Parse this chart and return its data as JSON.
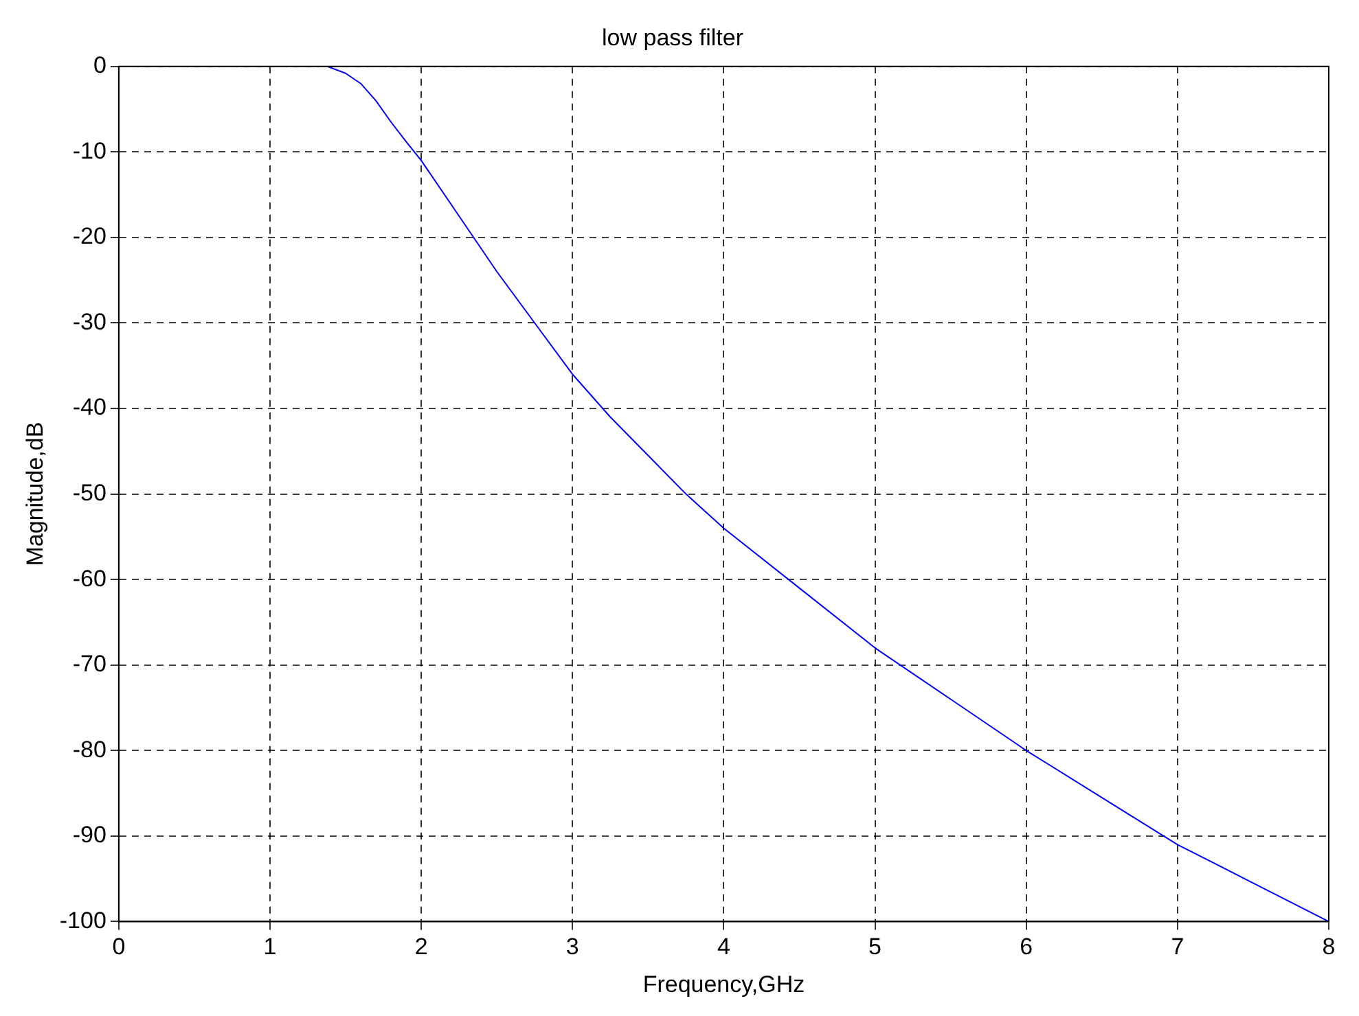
{
  "chart_data": {
    "type": "line",
    "title": "low pass filter",
    "xlabel": "Frequency,GHz",
    "ylabel": "Magnitude,dB",
    "x": [
      1.38,
      1.5,
      1.6,
      1.7,
      1.8,
      1.9,
      2,
      2.25,
      2.5,
      2.75,
      3,
      3.25,
      3.5,
      3.75,
      4,
      4.5,
      5,
      5.5,
      6,
      6.5,
      7,
      7.5,
      8
    ],
    "series": [
      {
        "color": "#0000ff",
        "values": [
          0,
          -0.8,
          -2,
          -4,
          -6.5,
          -8.8,
          -11,
          -17.5,
          -24,
          -30,
          -36,
          -41,
          -45.5,
          -50,
          -54,
          -61,
          -68,
          -74,
          -80,
          -85.5,
          -91,
          -95.5,
          -100
        ]
      }
    ],
    "xlim": [
      0,
      8
    ],
    "xticks": [
      0,
      1,
      2,
      3,
      4,
      5,
      6,
      7,
      8
    ],
    "ylim": [
      -100,
      0
    ],
    "yticks": [
      -100,
      -90,
      -80,
      -70,
      -60,
      -50,
      -40,
      -30,
      -20,
      -10,
      0
    ],
    "grid": true,
    "legend": false,
    "marker": "none",
    "line_style": "solid"
  }
}
